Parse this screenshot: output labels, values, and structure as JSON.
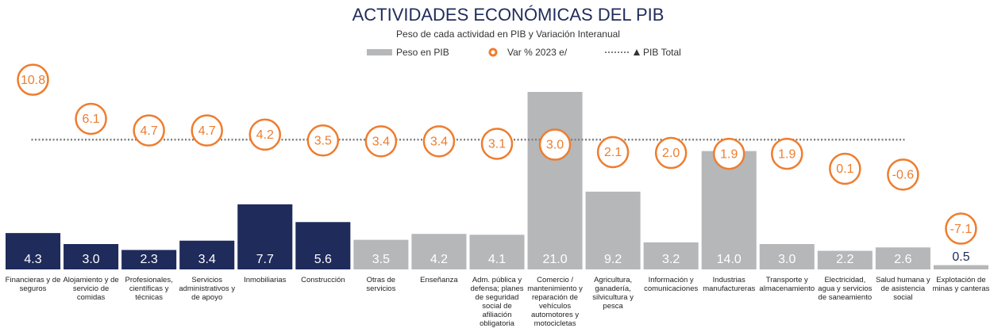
{
  "chart_data": {
    "type": "bar",
    "title": "ACTIVIDADES ECONÓMICAS DEL PIB",
    "subtitle": "Peso de cada actividad en PIB y Variación Interanual",
    "categories": [
      "Financieras y de seguros",
      "Alojamiento y de servicio de comidas",
      "Profesionales, científicas y técnicas",
      "Servicios administrativos y de apoyo",
      "Inmobiliarias",
      "Construcción",
      "Otras de servicios",
      "Enseñanza",
      "Adm. pública y defensa; planes de seguridad social de afiliación obligatoria",
      "Comercio / mantenimiento y reparación de vehículos automotores y motocicletas",
      "Agricultura, ganadería, silvicultura y pesca",
      "Información y comunicaciones",
      "Industrias manufactureras",
      "Transporte y almacenamiento",
      "Electricidad, agua y servicios de saneamiento",
      "Salud humana y de asistencia social",
      "Explotación de minas y canteras"
    ],
    "series": [
      {
        "name": "Peso en PIB",
        "values": [
          4.3,
          3.0,
          2.3,
          3.4,
          7.7,
          5.6,
          3.5,
          4.2,
          4.1,
          21.0,
          9.2,
          3.2,
          14.0,
          3.0,
          2.2,
          2.6,
          0.5
        ],
        "value_labels": [
          "4.3",
          "3.0",
          "2.3",
          "3.4",
          "7.7",
          "5.6",
          "3.5",
          "4.2",
          "4.1",
          "21.0",
          "9.2",
          "3.2",
          "14.0",
          "3.0",
          "2.2",
          "2.6",
          "0.5"
        ],
        "colors": [
          "#1f2b5b",
          "#1f2b5b",
          "#1f2b5b",
          "#1f2b5b",
          "#1f2b5b",
          "#1f2b5b",
          "#b5b7b9",
          "#b5b7b9",
          "#b5b7b9",
          "#b5b7b9",
          "#b5b7b9",
          "#b5b7b9",
          "#b5b7b9",
          "#b5b7b9",
          "#b5b7b9",
          "#b5b7b9",
          "#b5b7b9"
        ],
        "color": "#b5b7b9"
      },
      {
        "name": "Var % 2023 e/",
        "axis": "y2",
        "color": "#ee7d2f",
        "values": [
          10.8,
          6.1,
          4.7,
          4.7,
          4.2,
          3.5,
          3.4,
          3.4,
          3.1,
          3.0,
          2.1,
          2.0,
          1.9,
          1.9,
          0.1,
          -0.6,
          -7.1
        ],
        "value_labels": [
          "10.8",
          "6.1",
          "4.7",
          "4.7",
          "4.2",
          "3.5",
          "3.4",
          "3.4",
          "3.1",
          "3.0",
          "2.1",
          "2.0",
          "1.9",
          "1.9",
          "0.1",
          "-0.6",
          "-7.1"
        ]
      },
      {
        "name": "PIB Total",
        "axis": "y2",
        "color": "#7f7f7f",
        "value": 3.6
      }
    ],
    "ylim": [
      0,
      22.5
    ],
    "y2lim": [
      -12,
      10.86
    ]
  }
}
